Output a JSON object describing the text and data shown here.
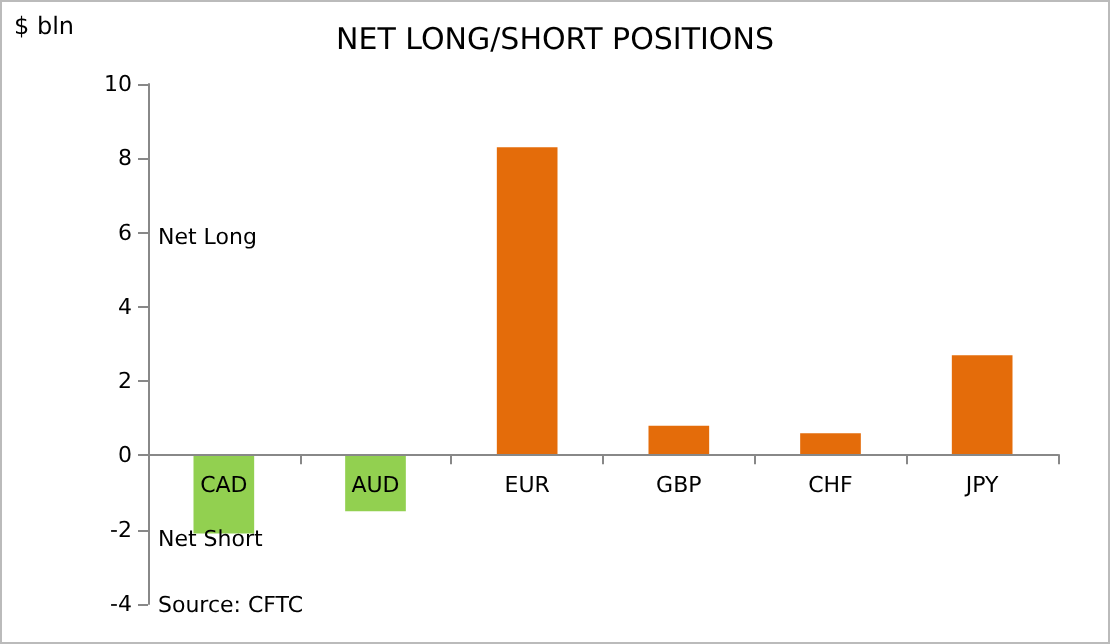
{
  "chart_data": {
    "type": "bar",
    "title": "NET LONG/SHORT POSITIONS",
    "ylabel": "$ bln",
    "categories": [
      "CAD",
      "AUD",
      "EUR",
      "GBP",
      "CHF",
      "JPY"
    ],
    "values": [
      -2.1,
      -1.5,
      8.3,
      0.8,
      0.6,
      2.7
    ],
    "colors": [
      "#92d050",
      "#92d050",
      "#e46c0a",
      "#e46c0a",
      "#e46c0a",
      "#e46c0a"
    ],
    "ylim": [
      -4,
      10
    ],
    "yticks": [
      -4,
      -2,
      0,
      2,
      4,
      6,
      8,
      10
    ],
    "grid": false,
    "annotations": [
      "Net Long",
      "Net Short",
      "Source: CFTC"
    ]
  }
}
